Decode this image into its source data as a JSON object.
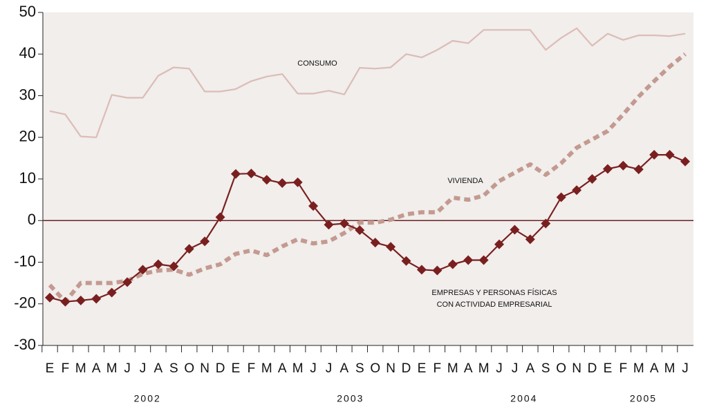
{
  "chart_data": {
    "type": "line",
    "categories": [
      "E",
      "F",
      "M",
      "A",
      "M",
      "J",
      "J",
      "A",
      "S",
      "O",
      "N",
      "D",
      "E",
      "F",
      "M",
      "A",
      "M",
      "J",
      "J",
      "A",
      "S",
      "O",
      "N",
      "D",
      "E",
      "F",
      "M",
      "A",
      "M",
      "J",
      "J",
      "A",
      "S",
      "O",
      "N",
      "D",
      "E",
      "F",
      "M",
      "A",
      "M",
      "J"
    ],
    "year_labels": [
      "2002",
      "2003",
      "2004",
      "2005"
    ],
    "ylim": [
      -30,
      50
    ],
    "yticks": [
      -30,
      -20,
      -10,
      0,
      10,
      20,
      30,
      40,
      50
    ],
    "zero_line_color": "#6b2222",
    "background": "#f1eeec",
    "series": [
      {
        "name": "CONSUMO",
        "color": "#dcbcb5",
        "style": "solid",
        "values": [
          26.3,
          25.5,
          20.2,
          20,
          30.2,
          29.5,
          29.5,
          34.8,
          36.8,
          36.5,
          31,
          31,
          31.6,
          33.5,
          34.6,
          35.2,
          30.5,
          30.5,
          31.2,
          30.3,
          36.7,
          36.5,
          36.8,
          40,
          39.2,
          41,
          43.2,
          42.6,
          45.8,
          45.8,
          45.8,
          45.8,
          41,
          43.9,
          46.2,
          42,
          44.9,
          43.4,
          44.5,
          44.5,
          44.3,
          44.9
        ]
      },
      {
        "name": "VIVIENDA",
        "color": "#c49a90",
        "style": "dashed",
        "values": [
          -15.5,
          -19.5,
          -15,
          -15,
          -15,
          -14.5,
          -12.8,
          -12,
          -11.8,
          -13,
          -11.5,
          -10.5,
          -8,
          -7.2,
          -8.3,
          -6.2,
          -4.5,
          -5.5,
          -5,
          -3,
          -0.5,
          -0.5,
          0.2,
          1.5,
          2,
          2,
          5.5,
          5,
          6,
          9.5,
          11.5,
          13.5,
          11,
          13.8,
          17.5,
          19.5,
          21.5,
          25.5,
          29.8,
          33.5,
          37,
          40
        ]
      },
      {
        "name": [
          "EMPRESAS Y PERSONAS FÍSICAS",
          "CON ACTIVIDAD EMPRESARIAL"
        ],
        "color": "#7a1f1f",
        "style": "diamonds",
        "values": [
          -18.5,
          -19.5,
          -19.2,
          -18.8,
          -17.3,
          -14.8,
          -11.8,
          -10.5,
          -11,
          -6.8,
          -5,
          0.8,
          11.2,
          11.3,
          9.8,
          9,
          9.2,
          3.5,
          -1,
          -0.7,
          -2.3,
          -5.3,
          -6.3,
          -9.7,
          -11.8,
          -12,
          -10.5,
          -9.5,
          -9.5,
          -5.7,
          -2.2,
          -4.5,
          -0.7,
          5.6,
          7.3,
          10,
          12.4,
          13.2,
          12.3,
          15.8,
          15.8,
          14.2
        ]
      }
    ]
  }
}
